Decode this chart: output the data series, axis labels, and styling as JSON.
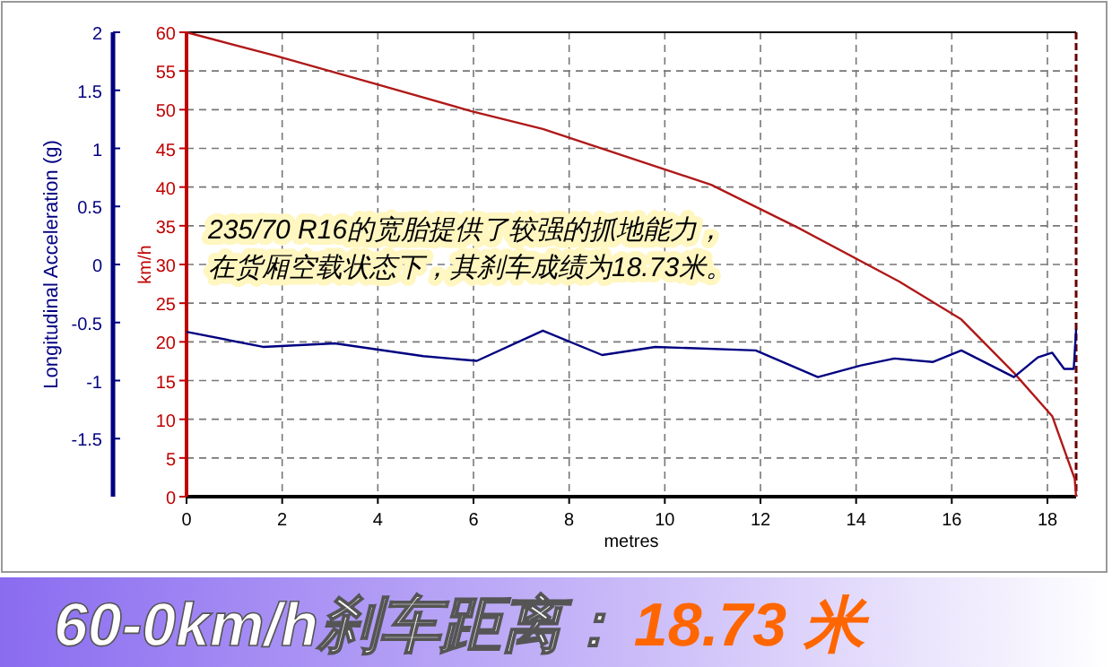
{
  "chart_data": {
    "type": "line",
    "title": "60-0km/h刹车距离：",
    "subtitle": "18.73 米",
    "xlabel": "metres",
    "ylabel": "km/h",
    "y2label": "Longitudinal Acceleration (g)",
    "annotations": [
      "235/70 R16的宽胎提供了较强的抓地能力，",
      "在货厢空载状态下，其刹车成绩为18.73米。"
    ],
    "xlim": [
      0,
      18.6
    ],
    "xticks": [
      0,
      2,
      4,
      6,
      8,
      10,
      12,
      14,
      16,
      18
    ],
    "ylim": [
      0,
      60
    ],
    "yticks": [
      0,
      5,
      10,
      15,
      20,
      25,
      30,
      35,
      40,
      45,
      50,
      55,
      60
    ],
    "y2lim": [
      -2,
      2
    ],
    "y2ticks": [
      -1.5,
      -1,
      -0.5,
      0,
      0.5,
      1,
      1.5,
      2
    ],
    "grid": true,
    "marker": "none",
    "line_style": "solid",
    "series": [
      {
        "color": "#b01818",
        "x": [
          0,
          1.84,
          3.97,
          5.96,
          7.45,
          10.97,
          12.8,
          14.9,
          16.2,
          17.3,
          18.1,
          18.57,
          18.6
        ],
        "values": [
          60,
          57,
          53.3,
          49.8,
          47.5,
          40.3,
          34.7,
          27.8,
          22.9,
          16,
          10.4,
          2.3,
          0
        ]
      },
      {
        "color": "#000080",
        "axis": "y2",
        "x": [
          0,
          1.6,
          3.1,
          4.95,
          6.07,
          7.45,
          8.69,
          9.8,
          11.9,
          13.2,
          14.1,
          14.8,
          15.6,
          16.2,
          17.3,
          17.8,
          18.1,
          18.35,
          18.55,
          18.6
        ],
        "values": [
          -0.58,
          -0.71,
          -0.68,
          -0.79,
          -0.83,
          -0.57,
          -0.78,
          -0.71,
          -0.74,
          -0.97,
          -0.87,
          -0.81,
          -0.84,
          -0.74,
          -0.97,
          -0.8,
          -0.76,
          -0.9,
          -0.9,
          -0.56
        ]
      }
    ]
  }
}
